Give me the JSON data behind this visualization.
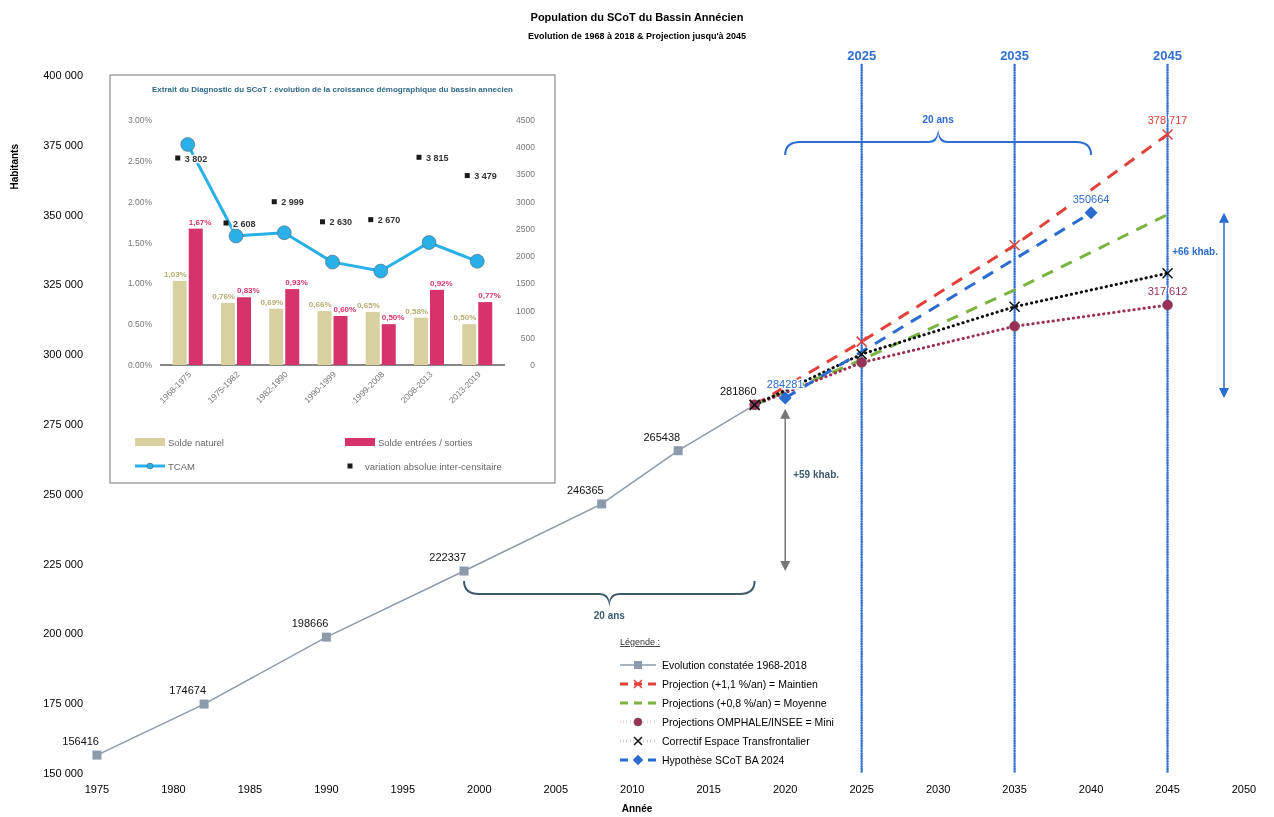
{
  "chart_data": [
    {
      "type": "line",
      "title": "Population du SCoT du Bassin Annécien",
      "subtitle": "Evolution de 1968 à 2018 & Projection jusqu'à 2045",
      "xlabel": "Année",
      "ylabel": "Habitants",
      "legend_title": "Légende :",
      "legend": "bottom right",
      "xlim": [
        1975,
        2050
      ],
      "xticks": [
        1975,
        1980,
        1985,
        1990,
        1995,
        2000,
        2005,
        2010,
        2015,
        2020,
        2025,
        2030,
        2035,
        2040,
        2045,
        2050
      ],
      "ylim": [
        150000,
        400000
      ],
      "yticks": [
        {
          "value": 150000,
          "label": "150 000"
        },
        {
          "value": 175000,
          "label": "175 000"
        },
        {
          "value": 200000,
          "label": "200 000"
        },
        {
          "value": 225000,
          "label": "225 000"
        },
        {
          "value": 250000,
          "label": "250 000"
        },
        {
          "value": 275000,
          "label": "275 000"
        },
        {
          "value": 300000,
          "label": "300 000"
        },
        {
          "value": 325000,
          "label": "325 000"
        },
        {
          "value": 350000,
          "label": "350 000"
        },
        {
          "value": 375000,
          "label": "375 000"
        },
        {
          "value": 400000,
          "label": "400 000"
        }
      ],
      "series": [
        {
          "name": "Evolution constatée 1968-2018",
          "color": "#8c9aab",
          "marker": "square",
          "line_style": "solid",
          "x": [
            1975,
            1982,
            1990,
            1999,
            2008,
            2013,
            2018
          ],
          "values": [
            156416,
            174674,
            198666,
            222337,
            246365,
            265438,
            281860
          ],
          "value_labels": [
            "156416",
            "174674",
            "198666",
            "222337",
            "246365",
            "265438",
            "281860"
          ]
        },
        {
          "name": "Projection (+1,1 %/an) = Maintien",
          "color": "#e2403a",
          "marker": "cross",
          "line_style": "dashed",
          "x": [
            2018,
            2025,
            2035,
            2045
          ],
          "values": [
            281860,
            304500,
            339000,
            378717
          ],
          "value_labels": [
            null,
            null,
            null,
            "378 717"
          ]
        },
        {
          "name": "Projections (+0,8 %/an) = Moyenne",
          "color": "#7cb342",
          "marker": "none",
          "line_style": "dashed",
          "x": [
            2018,
            2025,
            2035,
            2045
          ],
          "values": [
            281860,
            298000,
            323000,
            350000
          ]
        },
        {
          "name": "Projections OMPHALE/INSEE = Mini",
          "color": "#9c2f58",
          "marker": "circle",
          "line_style": "dotted",
          "x": [
            2018,
            2025,
            2035,
            2045
          ],
          "values": [
            281860,
            297000,
            310000,
            317612
          ],
          "value_labels": [
            null,
            null,
            null,
            "317 612"
          ]
        },
        {
          "name": "Correctif Espace Transfrontalier",
          "color": "#111111",
          "marker": "cross",
          "line_style": "dotted",
          "x": [
            2018,
            2025,
            2035,
            2045
          ],
          "values": [
            281860,
            300000,
            317000,
            329000
          ]
        },
        {
          "name": "Hypothèse SCoT BA 2024",
          "color": "#2a6cd0",
          "marker": "diamond",
          "line_style": "dashed",
          "x": [
            2020,
            2040
          ],
          "values": [
            284281,
            350664
          ],
          "value_labels": [
            "284281",
            "350664"
          ]
        }
      ],
      "ref_lines": [
        {
          "axis": "x",
          "value": 2025,
          "label": "2025",
          "color": "#2f6fd0",
          "line_style": "dotted"
        },
        {
          "axis": "x",
          "value": 2035,
          "label": "2035",
          "color": "#2f6fd0",
          "line_style": "dotted"
        },
        {
          "axis": "x",
          "value": 2045,
          "label": "2045",
          "color": "#2f6fd0",
          "line_style": "dotted"
        }
      ],
      "annotations": [
        "20 ans",
        "+59 khab.",
        "20 ans",
        "+66 khab."
      ]
    },
    {
      "type": "bar",
      "title": "Extrait du Diagnostic du SCoT : évolution de la croissance démographique du bassin annecien",
      "legend": "bottom",
      "categories": [
        "1968-1975",
        "1975-1982",
        "1982-1990",
        "1990-1999",
        "1999-2008",
        "2008-2013",
        "2013-2019"
      ],
      "ylim": [
        0,
        3
      ],
      "yticks": [
        {
          "value": 0,
          "label": "0.00%"
        },
        {
          "value": 0.5,
          "label": "0.50%"
        },
        {
          "value": 1,
          "label": "1.00%"
        },
        {
          "value": 1.5,
          "label": "1.50%"
        },
        {
          "value": 2,
          "label": "2.00%"
        },
        {
          "value": 2.5,
          "label": "2.50%"
        },
        {
          "value": 3,
          "label": "3.00%"
        }
      ],
      "y2lim": [
        0,
        4500
      ],
      "y2ticks": [
        0,
        500,
        1000,
        1500,
        2000,
        2500,
        3000,
        3500,
        4000,
        4500
      ],
      "series": [
        {
          "name": "Solde naturel",
          "type": "bar",
          "color": "#d9d0a0",
          "values": [
            1.03,
            0.76,
            0.69,
            0.66,
            0.65,
            0.58,
            0.5
          ],
          "value_labels": [
            "1,03%",
            "0,76%",
            "0,69%",
            "0,66%",
            "0,65%",
            "0,58%",
            "0,50%"
          ]
        },
        {
          "name": "Solde entrées / sorties",
          "type": "bar",
          "color": "#d6336c",
          "values": [
            1.67,
            0.83,
            0.93,
            0.6,
            0.5,
            0.92,
            0.77
          ],
          "value_labels": [
            "1,67%",
            "0,83%",
            "0,93%",
            "0,60%",
            "0,50%",
            "0,92%",
            "0,77%"
          ]
        },
        {
          "name": "TCAM",
          "type": "line",
          "color": "#29b0e8",
          "marker": "circle",
          "line_style": "solid",
          "values": [
            2.7,
            1.58,
            1.62,
            1.26,
            1.15,
            1.5,
            1.27
          ]
        },
        {
          "name": "variation absolue inter-censitaire",
          "type": "scatter",
          "axis": "y2",
          "color": "#1a1a1a",
          "marker": "square",
          "values": [
            3802,
            2608,
            2999,
            2630,
            2670,
            3815,
            3479
          ],
          "value_labels": [
            "3 802",
            "2 608",
            "2 999",
            "2 630",
            "2 670",
            "3 815",
            "3 479"
          ]
        }
      ]
    }
  ]
}
